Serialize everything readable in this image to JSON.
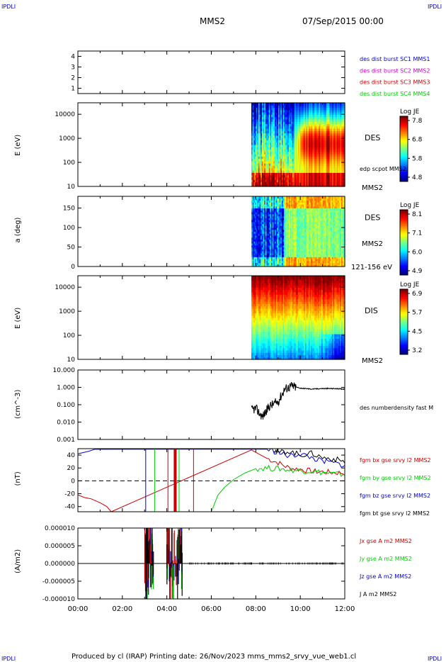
{
  "header": {
    "corner_left": "IPDLI",
    "corner_right": "IPDLI",
    "mission": "MMS2",
    "datetime": "07/Sep/2015 00:00",
    "corner_bottom_left": "IPDLI",
    "corner_bottom_right": "IPDLI"
  },
  "footer": {
    "text": "Produced by cl (IRAP)   Printing date: 26/Nov/2023   mms_mms2_srvy_vue_web1.cl"
  },
  "colors": {
    "blue": "#0000cc",
    "magenta": "#cc00cc",
    "red": "#cc0000",
    "green": "#00cc00",
    "black": "#000000"
  },
  "chart_data": [
    {
      "id": "burst",
      "type": "table",
      "ticks": [
        "1",
        "2",
        "3",
        "4"
      ],
      "ylim": [
        0.5,
        4.5
      ],
      "legend": [
        {
          "label": "des dist burst SC1 MMS1",
          "color": "#0000cc"
        },
        {
          "label": "des dist burst SC2 MMS2",
          "color": "#cc00cc"
        },
        {
          "label": "des dist burst SC3 MMS3",
          "color": "#cc0000"
        },
        {
          "label": "des dist burst SC4 MMS4",
          "color": "#00cc00"
        }
      ]
    },
    {
      "id": "des-energy",
      "type": "heatmap",
      "ylabel": "E (eV)",
      "yscale": "log",
      "ylim": [
        10,
        30000
      ],
      "ticks": [
        "10",
        "100",
        "1000",
        "10000"
      ],
      "data_start_hour": 7.8,
      "label": "DES",
      "sublabel": "edp scpot MMS2",
      "spacecraft": "MMS2",
      "colorbar": {
        "title": "Log JE",
        "ticks": [
          "7.8",
          "6.8",
          "5.8",
          "4.8"
        ],
        "range": [
          4.8,
          7.8
        ]
      }
    },
    {
      "id": "des-pitch",
      "type": "heatmap",
      "ylabel": "a (deg)",
      "ylim": [
        0,
        180
      ],
      "ticks": [
        "0",
        "50",
        "100",
        "150"
      ],
      "data_start_hour": 7.8,
      "label": "DES",
      "spacecraft": "MMS2",
      "energy_band": "121-156 eV",
      "colorbar": {
        "title": "Log JE",
        "ticks": [
          "8.1",
          "7.1",
          "6.0",
          "4.9"
        ],
        "range": [
          4.9,
          8.1
        ]
      }
    },
    {
      "id": "dis-energy",
      "type": "heatmap",
      "ylabel": "E (eV)",
      "yscale": "log",
      "ylim": [
        10,
        30000
      ],
      "ticks": [
        "10",
        "100",
        "1000",
        "10000"
      ],
      "data_start_hour": 7.8,
      "label": "DIS",
      "spacecraft": "MMS2",
      "colorbar": {
        "title": "Log JE",
        "ticks": [
          "6.9",
          "5.7",
          "4.5",
          "3.2"
        ],
        "range": [
          3.2,
          6.9
        ]
      }
    },
    {
      "id": "density",
      "type": "line",
      "ylabel": "(cm^-3)",
      "yscale": "log",
      "ylim": [
        0.001,
        10
      ],
      "ticks": [
        "0.001",
        "0.010",
        "0.100",
        "1.000",
        "10.000"
      ],
      "legend": [
        {
          "label": "des numberdensity fast M",
          "color": "#000000"
        }
      ],
      "series": [
        {
          "name": "des numberdensity fast M",
          "color": "#000000",
          "x": [
            7.8,
            8.0,
            8.3,
            8.6,
            9.0,
            9.3,
            9.6,
            10.0,
            10.5,
            11.0,
            11.5,
            12.0
          ],
          "y": [
            0.05,
            0.06,
            0.02,
            0.08,
            0.15,
            0.8,
            1.2,
            0.9,
            0.8,
            0.85,
            0.85,
            0.8
          ]
        }
      ]
    },
    {
      "id": "bfield",
      "type": "line",
      "ylabel": "(nT)",
      "ylim": [
        -48,
        50
      ],
      "ticks": [
        "-40",
        "-20",
        "0",
        "20",
        "40"
      ],
      "legend": [
        {
          "label": "fgm bx gse srvy l2 MMS2",
          "color": "#cc0000"
        },
        {
          "label": "fgm by gse srvy l2 MMS2",
          "color": "#00cc00"
        },
        {
          "label": "fgm bz gse srvy l2 MMS2",
          "color": "#0000cc"
        },
        {
          "label": "fgm bt gse srvy l2 MMS2",
          "color": "#000000"
        }
      ],
      "series": [
        {
          "name": "fgm bx gse srvy l2 MMS2",
          "color": "#cc0000",
          "x": [
            0,
            0.3,
            0.6,
            1.0,
            1.3,
            1.5,
            7.8,
            8.5,
            9.0,
            9.5,
            10.0,
            10.5,
            11.0,
            11.5,
            12.0
          ],
          "y": [
            -22,
            -26,
            -28,
            -34,
            -40,
            -48,
            48,
            35,
            28,
            20,
            18,
            15,
            14,
            13,
            12
          ]
        },
        {
          "name": "fgm by gse srvy l2 MMS2",
          "color": "#00cc00",
          "x": [
            6.0,
            6.3,
            6.6,
            7.0,
            7.5,
            8.0,
            8.5,
            9.0,
            9.5,
            10.0,
            10.5,
            11.0,
            11.5,
            12.0
          ],
          "y": [
            -48,
            -22,
            -10,
            2,
            12,
            19,
            20,
            19,
            17,
            16,
            15,
            13,
            11,
            10
          ]
        },
        {
          "name": "fgm bz gse srvy l2 MMS2",
          "color": "#0000cc",
          "x": [
            0,
            0.5,
            0.75,
            8.5,
            9.0,
            9.5,
            10.0,
            10.5,
            11.0,
            11.5,
            12.0
          ],
          "y": [
            42,
            46,
            49,
            49,
            44,
            38,
            42,
            36,
            30,
            28,
            24
          ]
        },
        {
          "name": "fgm bt gse srvy l2 MMS2",
          "color": "#000000",
          "x": [
            8.8,
            9.0,
            9.5,
            10.0,
            10.5,
            11.0,
            11.5,
            12.0
          ],
          "y": [
            49,
            44,
            46,
            40,
            43,
            36,
            34,
            30
          ]
        }
      ]
    },
    {
      "id": "current",
      "type": "line",
      "ylabel": "(A/m2)",
      "ylim": [
        -1e-05,
        1e-05
      ],
      "ticks": [
        "-0.000010",
        "-0.000005",
        "0.000000",
        "0.000005",
        "0.000010"
      ],
      "xticks": [
        "00:00",
        "02:00",
        "04:00",
        "06:00",
        "08:00",
        "10:00",
        "12:00"
      ],
      "xlim": [
        0,
        12
      ],
      "legend": [
        {
          "label": "Jx gse A m2 MMS2",
          "color": "#cc0000"
        },
        {
          "label": "Jy gse A m2 MMS2",
          "color": "#00cc00"
        },
        {
          "label": "Jz gse A m2 MMS2",
          "color": "#0000cc"
        },
        {
          "label": "J A m2 MMS2",
          "color": "#000000"
        }
      ]
    }
  ]
}
